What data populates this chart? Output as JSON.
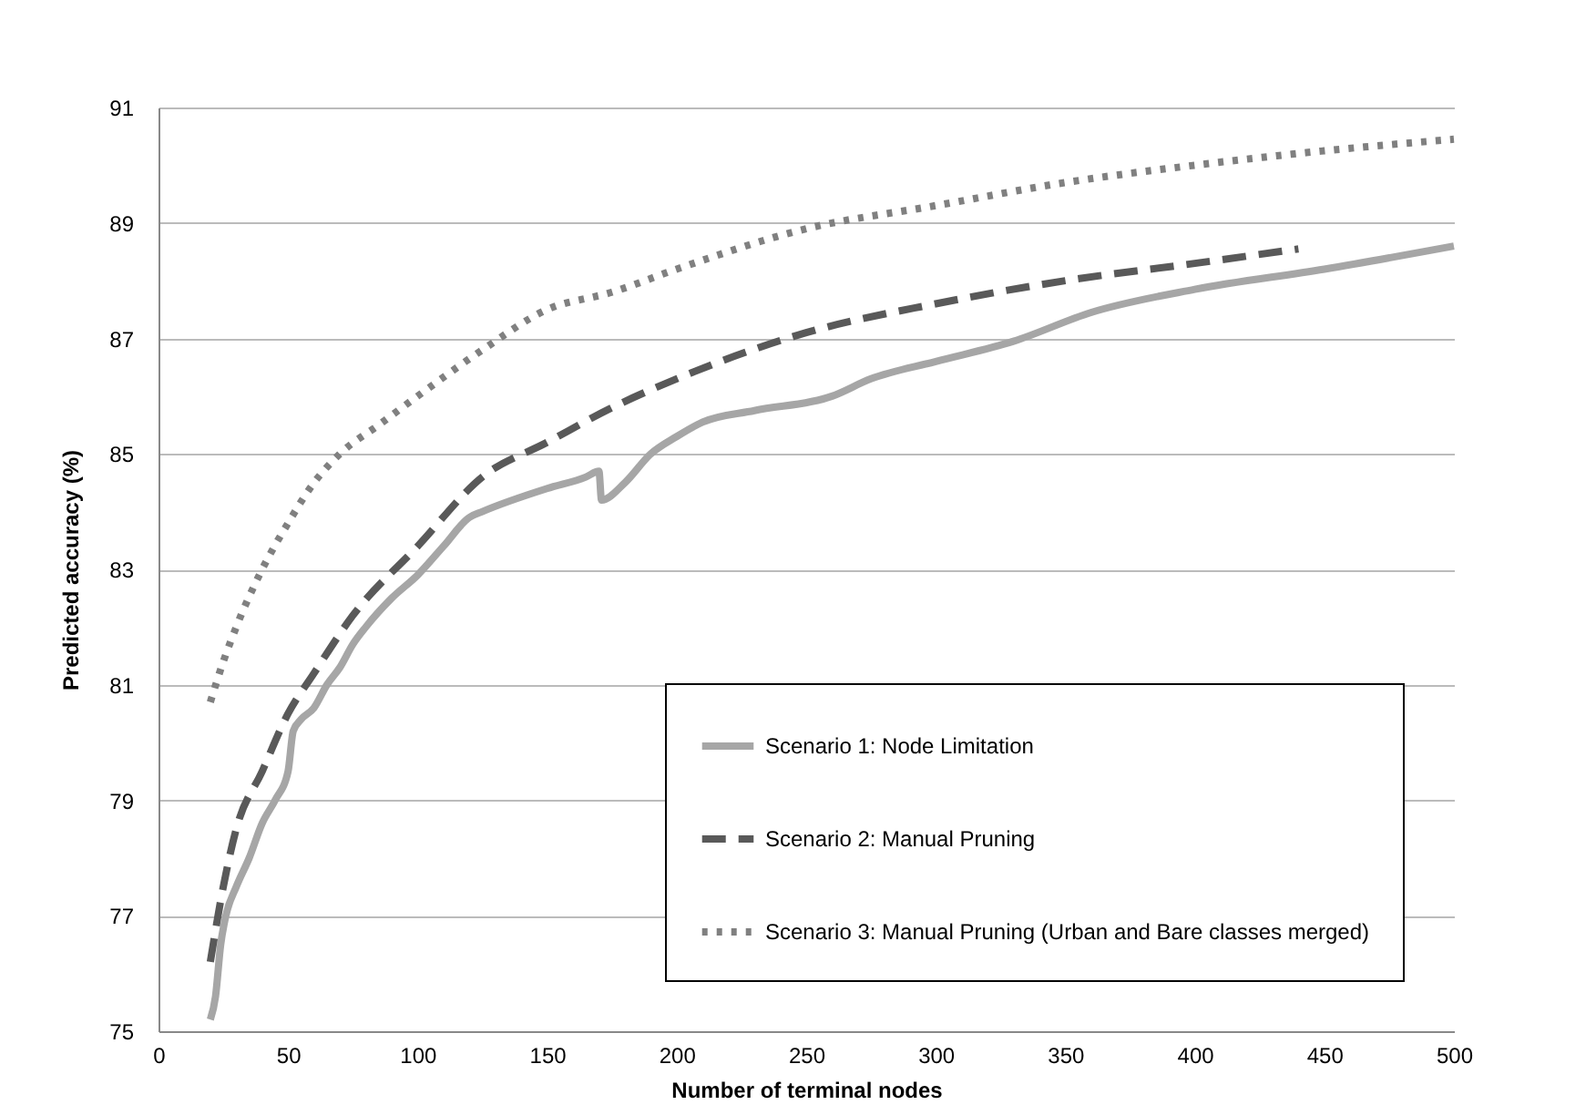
{
  "chart_data": {
    "type": "line",
    "xlabel": "Number of terminal nodes",
    "ylabel": "Predicted accuracy (%)",
    "xlim": [
      0,
      500
    ],
    "xticks": [
      0,
      50,
      100,
      150,
      200,
      250,
      300,
      350,
      400,
      450,
      500
    ],
    "ylim": [
      75,
      91
    ],
    "yticks": [
      75,
      77,
      79,
      81,
      83,
      85,
      87,
      89,
      91
    ],
    "grid": "y",
    "legend": "bottom right",
    "series": [
      {
        "name": "Scenario 1: Node Limitation",
        "color": "#a6a6a6",
        "line_style": "solid",
        "x": [
          20,
          22,
          24,
          26,
          30,
          35,
          40,
          45,
          50,
          52,
          55,
          60,
          65,
          70,
          75,
          80,
          90,
          100,
          110,
          120,
          125,
          150,
          165,
          170,
          171,
          180,
          190,
          200,
          210,
          230,
          260,
          275,
          300,
          330,
          360,
          400,
          450,
          500
        ],
        "values": [
          75.2,
          75.6,
          76.5,
          77.0,
          77.5,
          78.0,
          78.6,
          79.0,
          79.5,
          80.2,
          80.4,
          80.6,
          81.0,
          81.3,
          81.7,
          82.0,
          82.5,
          82.9,
          83.4,
          83.9,
          84.0,
          84.4,
          84.6,
          84.7,
          84.2,
          84.5,
          85.0,
          85.3,
          85.55,
          85.75,
          86.0,
          86.3,
          86.6,
          86.95,
          87.45,
          87.85,
          88.2,
          88.6
        ]
      },
      {
        "name": "Scenario 2: Manual Pruning",
        "color": "#595959",
        "line_style": "dashed",
        "x": [
          20,
          25,
          30,
          40,
          50,
          60,
          75,
          100,
          125,
          150,
          175,
          200,
          250,
          300,
          350,
          400,
          440
        ],
        "values": [
          76.2,
          77.5,
          78.5,
          79.5,
          80.5,
          81.2,
          82.2,
          83.4,
          84.6,
          85.2,
          85.8,
          86.3,
          87.1,
          87.6,
          88.0,
          88.3,
          88.55
        ]
      },
      {
        "name": "Scenario 3: Manual Pruning (Urban and Bare classes merged)",
        "color": "#808080",
        "line_style": "dotted",
        "x": [
          20,
          25,
          30,
          40,
          50,
          60,
          70,
          85,
          100,
          125,
          150,
          175,
          200,
          250,
          300,
          350,
          400,
          450,
          500
        ],
        "values": [
          80.7,
          81.4,
          82.0,
          83.0,
          83.8,
          84.5,
          85.0,
          85.5,
          86.0,
          86.8,
          87.5,
          87.8,
          88.2,
          88.9,
          89.3,
          89.7,
          90.0,
          90.25,
          90.45
        ]
      }
    ]
  }
}
